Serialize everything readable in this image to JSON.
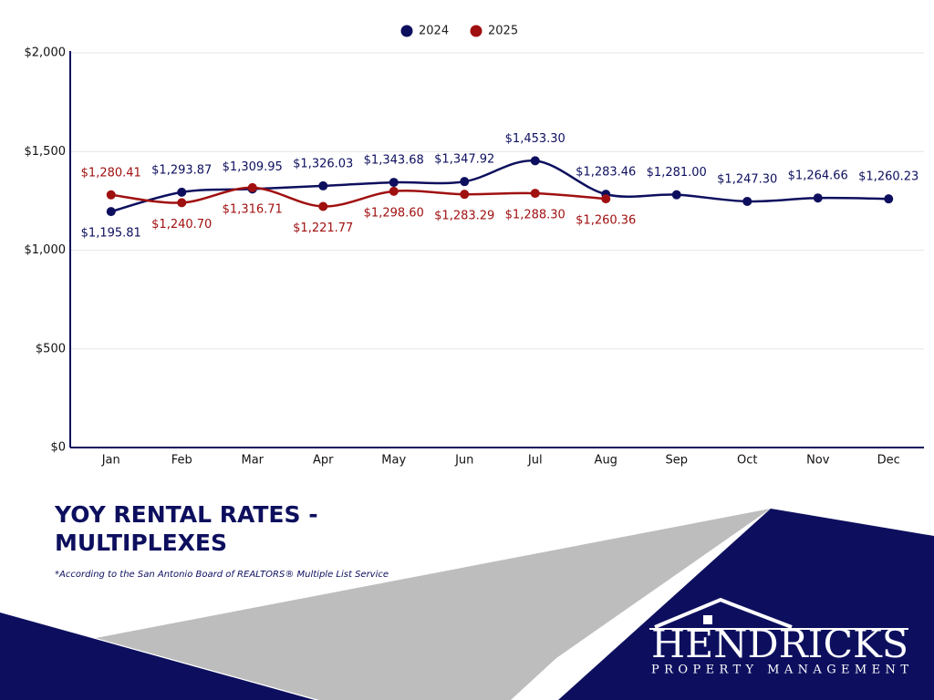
{
  "chart_data": {
    "type": "line",
    "categories": [
      "Jan",
      "Feb",
      "Mar",
      "Apr",
      "May",
      "Jun",
      "Jul",
      "Aug",
      "Sep",
      "Oct",
      "Nov",
      "Dec"
    ],
    "series": [
      {
        "name": "2024",
        "color": "#0d0f5e",
        "values": [
          1195.81,
          1293.87,
          1309.95,
          1326.03,
          1343.68,
          1347.92,
          1453.3,
          1283.46,
          1281.0,
          1247.3,
          1264.66,
          1260.23
        ],
        "value_labels": [
          "$1,195.81",
          "$1,293.87",
          "$1,309.95",
          "$1,326.03",
          "$1,343.68",
          "$1,347.92",
          "$1,453.30",
          "$1,283.46",
          "$1,281.00",
          "$1,247.30",
          "$1,264.66",
          "$1,260.23"
        ]
      },
      {
        "name": "2025",
        "color": "#a01010",
        "values": [
          1280.41,
          1240.7,
          1316.71,
          1221.77,
          1298.6,
          1283.29,
          1288.3,
          1260.36,
          null,
          null,
          null,
          null
        ],
        "value_labels": [
          "$1,280.41",
          "$1,240.70",
          "$1,316.71",
          "$1,221.77",
          "$1,298.60",
          "$1,283.29",
          "$1,288.30",
          "$1,260.36",
          null,
          null,
          null,
          null
        ]
      }
    ],
    "ylim": [
      0,
      2000
    ],
    "yticks": [
      {
        "value": 0,
        "label": "$0"
      },
      {
        "value": 500,
        "label": "$500"
      },
      {
        "value": 1000,
        "label": "$1,000"
      },
      {
        "value": 1500,
        "label": "$1,500"
      },
      {
        "value": 2000,
        "label": "$2,000"
      }
    ],
    "grid": true,
    "legend": "top"
  },
  "title": "YOY RENTAL RATES - MULTIPLEXES",
  "footnote": "*According to the San Antonio Board of REALTORS® Multiple List Service",
  "logo": {
    "name": "HENDRICKS",
    "tagline": "PROPERTY MANAGEMENT"
  }
}
